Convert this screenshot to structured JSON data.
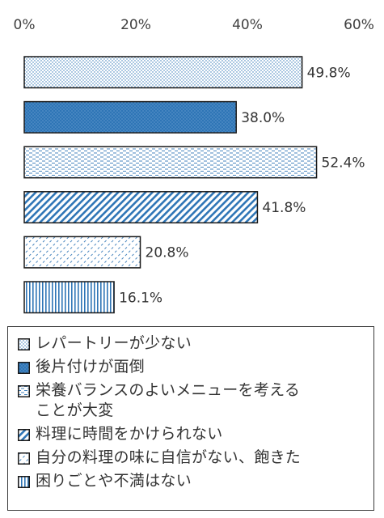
{
  "chart_data": {
    "type": "bar",
    "orientation": "horizontal",
    "categories": [
      "レパートリーが少ない",
      "後片付けが面倒",
      "栄養バランスのよいメニューを考えることが大変",
      "料理に時間をかけられない",
      "自分の料理の味に自信がない、飽きた",
      "困りごとや不満はない"
    ],
    "values": [
      49.8,
      38.0,
      52.4,
      41.8,
      20.8,
      16.1
    ],
    "value_labels": [
      "49.8%",
      "38.0%",
      "52.4%",
      "41.8%",
      "20.8%",
      "16.1%"
    ],
    "xlim": [
      0,
      60
    ],
    "xticks": [
      0,
      20,
      40,
      60
    ],
    "xtick_labels": [
      "0%",
      "20%",
      "40%",
      "60%"
    ],
    "axis_position": "top",
    "grid": false,
    "legend_position": "bottom",
    "colors": {
      "accent": "#2e75b6",
      "border": "#1a1a1a",
      "fill_light": "#ffffff"
    },
    "patterns": [
      "dots",
      "solid-dotted",
      "dashes",
      "diagonal",
      "diagonal-dashes",
      "vertical"
    ]
  },
  "legend": {
    "items": [
      {
        "label": "レパートリーが少ない",
        "pattern": "dots"
      },
      {
        "label": "後片付けが面倒",
        "pattern": "solid-dotted"
      },
      {
        "label": "栄養バランスのよいメニューを考える\nことが大変",
        "pattern": "dashes"
      },
      {
        "label": "料理に時間をかけられない",
        "pattern": "diagonal"
      },
      {
        "label": "自分の料理の味に自信がない、飽きた",
        "pattern": "diagonal-dashes"
      },
      {
        "label": "困りごとや不満はない",
        "pattern": "vertical"
      }
    ]
  }
}
